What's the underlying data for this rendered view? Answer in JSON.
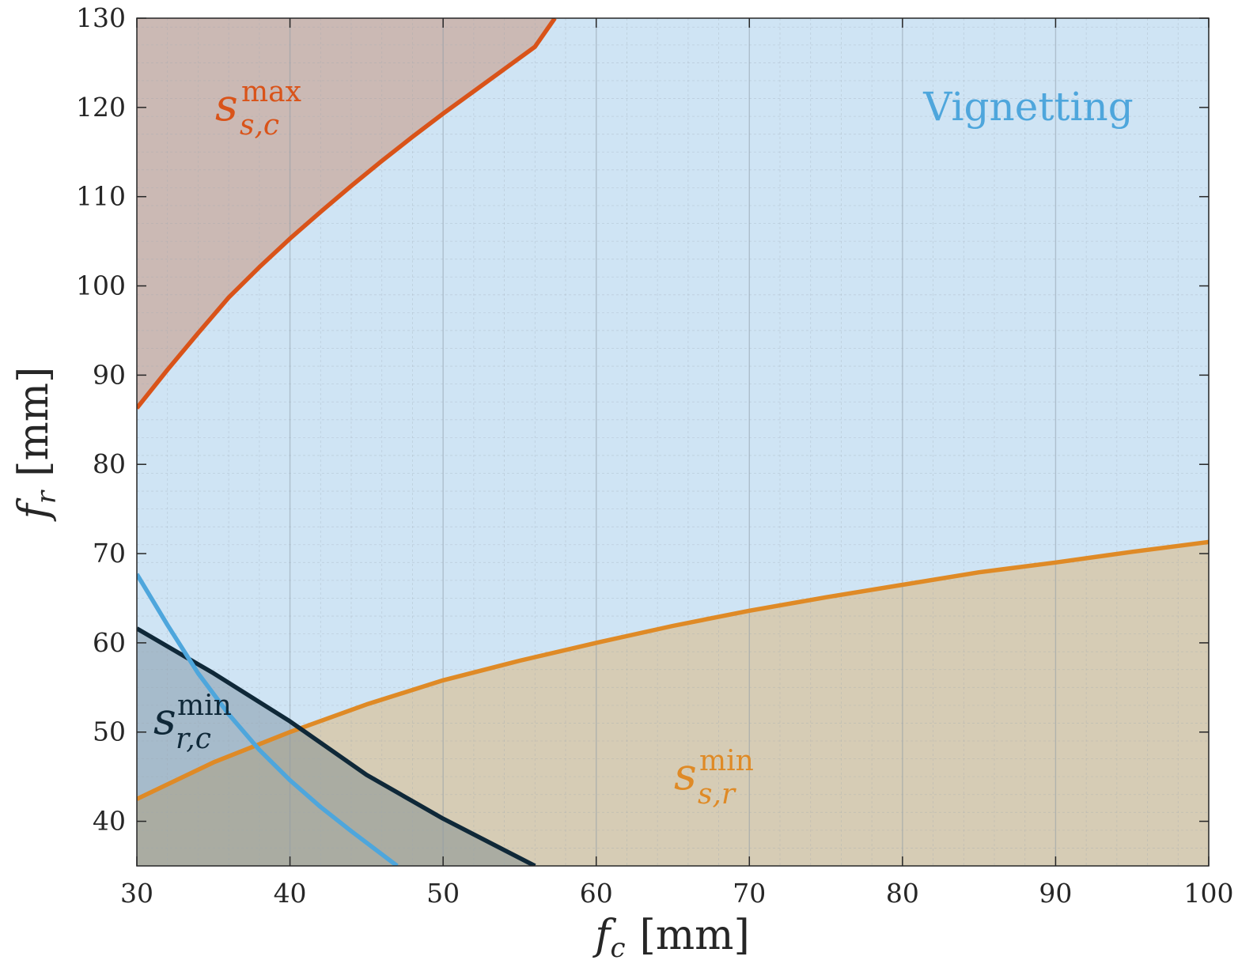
{
  "chart_data": {
    "type": "area",
    "xlabel": {
      "symbol": "f",
      "sub": "c",
      "unit": "[mm]"
    },
    "ylabel": {
      "symbol": "f",
      "sub": "r",
      "unit": "[mm]"
    },
    "xlim": [
      30,
      100
    ],
    "ylim": [
      35,
      130
    ],
    "xticks": [
      "30",
      "40",
      "50",
      "60",
      "70",
      "80",
      "90",
      "100"
    ],
    "yticks": [
      "40",
      "50",
      "60",
      "70",
      "80",
      "90",
      "100",
      "110",
      "120",
      "130"
    ],
    "grid": "major and minor",
    "regions": [
      {
        "id": "vignetting",
        "fill": "#cfe4f4",
        "label": {
          "text": "Vignetting",
          "color": "#4ea6dc"
        }
      }
    ],
    "series": [
      {
        "id": "s_sc_max",
        "label": {
          "main": "s",
          "sup": "max",
          "sub": "s,c"
        },
        "color": "#d95319",
        "fill": "#cbb9b4",
        "fill_side": "above",
        "x": [
          30,
          32,
          34,
          36,
          38,
          40,
          42,
          44,
          46,
          48,
          50,
          52,
          54,
          56,
          57.3
        ],
        "y": [
          86.3,
          90.6,
          94.7,
          98.7,
          102.1,
          105.3,
          108.3,
          111.2,
          114.0,
          116.7,
          119.3,
          121.8,
          124.3,
          126.8,
          130.0
        ]
      },
      {
        "id": "s_sr_min",
        "label": {
          "main": "s",
          "sup": "min",
          "sub": "s,r"
        },
        "color": "#df8a26",
        "fill": "#d6ccb5",
        "fill_side": "below",
        "x": [
          30,
          35,
          40,
          45,
          50,
          55,
          60,
          65,
          70,
          75,
          80,
          85,
          90,
          95,
          100
        ],
        "y": [
          42.5,
          46.6,
          50.0,
          53.1,
          55.8,
          58.0,
          60.0,
          61.9,
          63.6,
          65.1,
          66.5,
          67.9,
          69.0,
          70.2,
          71.3
        ]
      },
      {
        "id": "s_rc_min",
        "label": {
          "main": "s",
          "sup": "min",
          "sub": "r,c"
        },
        "color": "#0f2838",
        "fill": "#a7b4c0",
        "fill_side": "below",
        "x": [
          30,
          35,
          40,
          45,
          50,
          56
        ],
        "y": [
          61.6,
          56.6,
          51.2,
          45.2,
          40.3,
          35.0
        ]
      },
      {
        "id": "blue_curve",
        "color": "#4ea6dc",
        "x": [
          30,
          32,
          34,
          36,
          38,
          40,
          42,
          44,
          46,
          47
        ],
        "y": [
          67.7,
          62.0,
          56.6,
          52.0,
          48.0,
          44.6,
          41.6,
          38.9,
          36.3,
          35.0
        ]
      }
    ]
  }
}
